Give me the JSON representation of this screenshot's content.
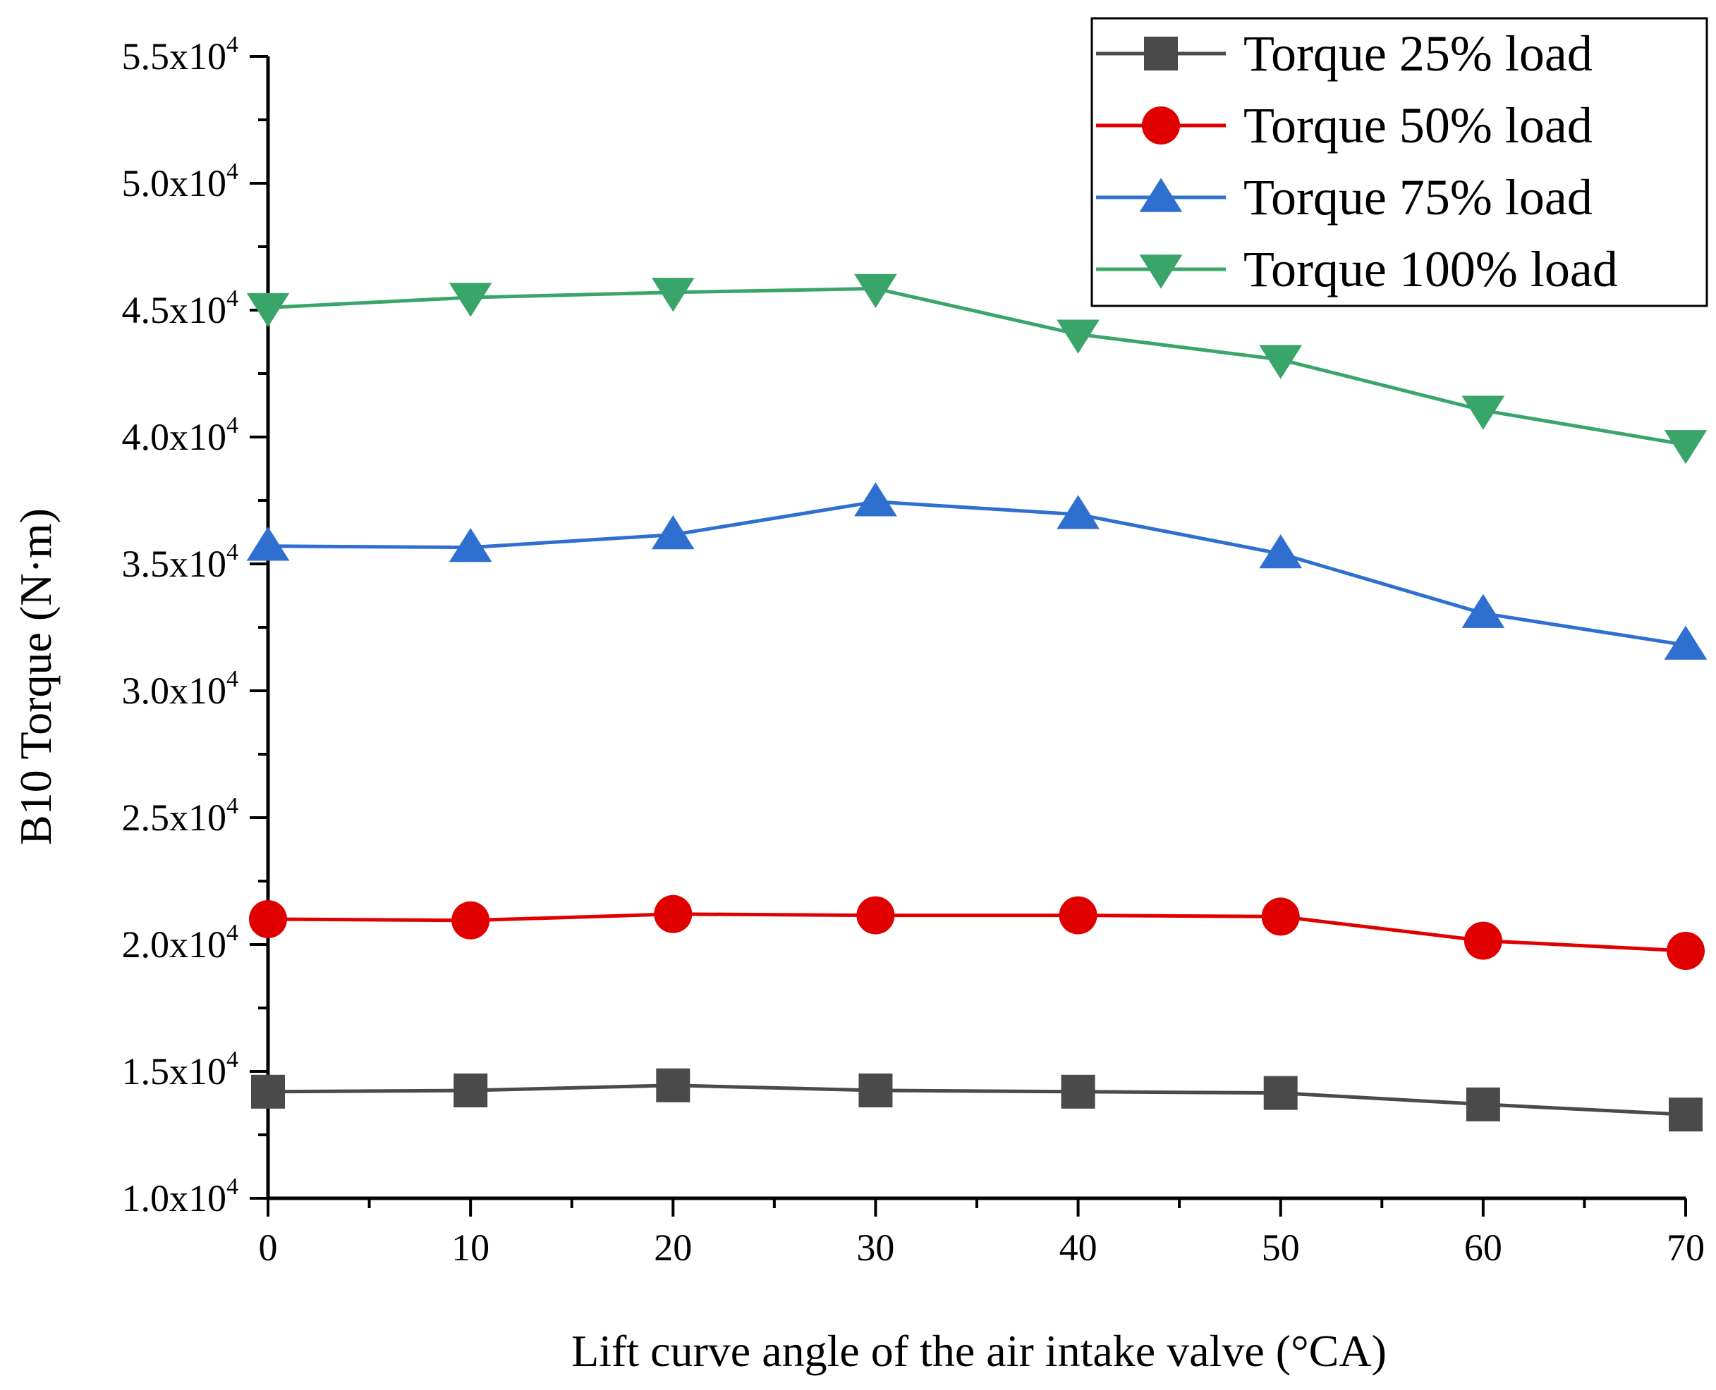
{
  "chart_data": {
    "type": "line",
    "title": "",
    "xlabel": "Lift curve angle of the air intake valve (°CA)",
    "ylabel": "B10 Torque (N·m)",
    "x": [
      0,
      10,
      20,
      30,
      40,
      50,
      60,
      70
    ],
    "xlim": [
      0,
      70
    ],
    "ylim": [
      10000,
      55000
    ],
    "x_ticks": [
      {
        "value": 0,
        "label": "0"
      },
      {
        "value": 10,
        "label": "10"
      },
      {
        "value": 20,
        "label": "20"
      },
      {
        "value": 30,
        "label": "30"
      },
      {
        "value": 40,
        "label": "40"
      },
      {
        "value": 50,
        "label": "50"
      },
      {
        "value": 60,
        "label": "60"
      },
      {
        "value": 70,
        "label": "70"
      }
    ],
    "y_ticks": [
      {
        "value": 10000,
        "mantissa": "1.0x10",
        "exponent": "4"
      },
      {
        "value": 15000,
        "mantissa": "1.5x10",
        "exponent": "4"
      },
      {
        "value": 20000,
        "mantissa": "2.0x10",
        "exponent": "4"
      },
      {
        "value": 25000,
        "mantissa": "2.5x10",
        "exponent": "4"
      },
      {
        "value": 30000,
        "mantissa": "3.0x10",
        "exponent": "4"
      },
      {
        "value": 35000,
        "mantissa": "3.5x10",
        "exponent": "4"
      },
      {
        "value": 40000,
        "mantissa": "4.0x10",
        "exponent": "4"
      },
      {
        "value": 45000,
        "mantissa": "4.5x10",
        "exponent": "4"
      },
      {
        "value": 50000,
        "mantissa": "5.0x10",
        "exponent": "4"
      },
      {
        "value": 55000,
        "mantissa": "5.5x10",
        "exponent": "4"
      }
    ],
    "grid": false,
    "legend_position": "top-right",
    "series": [
      {
        "name": "Torque 25% load",
        "color": "#4a4a4a",
        "marker": "square",
        "values": [
          14200,
          14250,
          14450,
          14250,
          14200,
          14150,
          13700,
          13300
        ]
      },
      {
        "name": "Torque 50% load",
        "color": "#e00000",
        "marker": "circle",
        "values": [
          21000,
          20950,
          21200,
          21150,
          21150,
          21100,
          20150,
          19750
        ]
      },
      {
        "name": "Torque 75% load",
        "color": "#2e6fd0",
        "marker": "triangle-up",
        "values": [
          35700,
          35650,
          36150,
          37450,
          36950,
          35400,
          33050,
          31800
        ]
      },
      {
        "name": "Torque 100% load",
        "color": "#3aa56a",
        "marker": "triangle-down",
        "values": [
          45100,
          45500,
          45700,
          45850,
          44050,
          43050,
          41050,
          39700
        ]
      }
    ]
  }
}
